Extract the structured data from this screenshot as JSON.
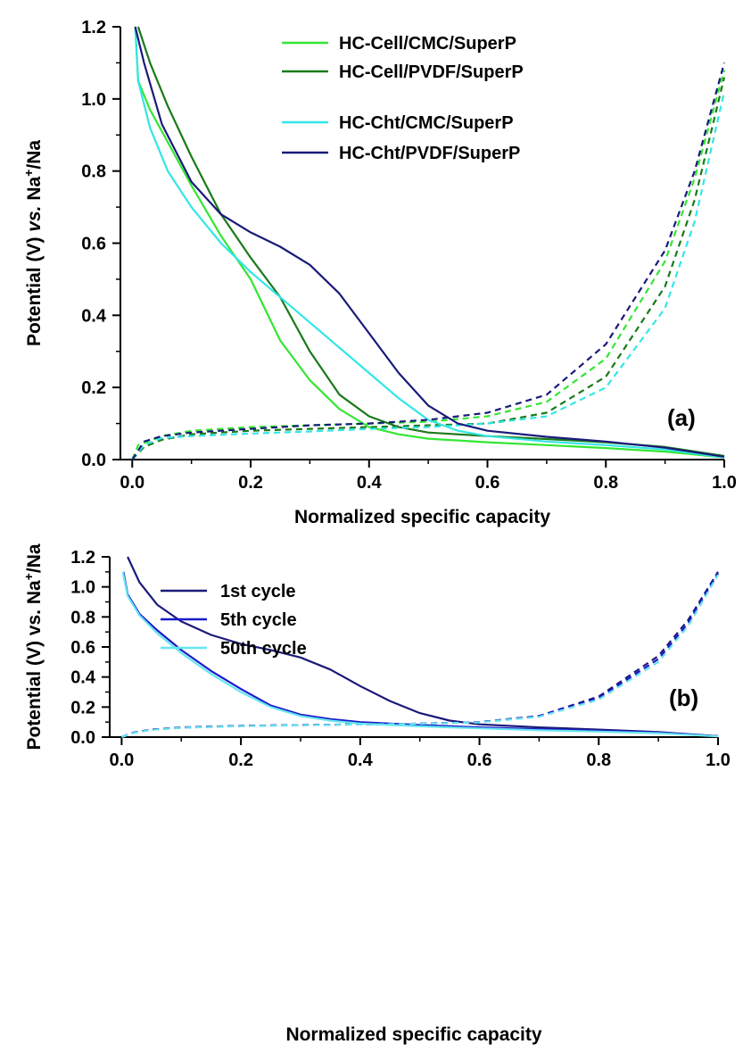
{
  "chart_data": [
    {
      "type": "line",
      "panel_label": "(a)",
      "xlabel": "Normalized specific capacity",
      "ylabel_parts": [
        "Potential (V) ",
        "vs.",
        " Na",
        "+",
        "/Na"
      ],
      "xlim": [
        -0.02,
        1.0
      ],
      "ylim": [
        0,
        1.2
      ],
      "x_ticks": [
        "0.0",
        "0.2",
        "0.4",
        "0.6",
        "0.8",
        "1.0"
      ],
      "y_ticks": [
        "0.0",
        "0.2",
        "0.4",
        "0.6",
        "0.8",
        "1.0",
        "1.2"
      ],
      "legend_position": "top-right",
      "series": [
        {
          "name": "HC-Cell/CMC/SuperP",
          "color": "#33e633",
          "discharge": [
            [
              0.005,
              1.2
            ],
            [
              0.01,
              1.05
            ],
            [
              0.03,
              0.97
            ],
            [
              0.06,
              0.88
            ],
            [
              0.1,
              0.76
            ],
            [
              0.15,
              0.62
            ],
            [
              0.2,
              0.5
            ],
            [
              0.25,
              0.33
            ],
            [
              0.3,
              0.22
            ],
            [
              0.35,
              0.14
            ],
            [
              0.4,
              0.09
            ],
            [
              0.45,
              0.07
            ],
            [
              0.5,
              0.058
            ],
            [
              0.6,
              0.048
            ],
            [
              0.7,
              0.04
            ],
            [
              0.8,
              0.032
            ],
            [
              0.9,
              0.022
            ],
            [
              1.0,
              0.006
            ]
          ],
          "charge": [
            [
              0.0,
              0.0
            ],
            [
              0.01,
              0.04
            ],
            [
              0.05,
              0.065
            ],
            [
              0.1,
              0.08
            ],
            [
              0.2,
              0.09
            ],
            [
              0.3,
              0.095
            ],
            [
              0.4,
              0.1
            ],
            [
              0.5,
              0.105
            ],
            [
              0.6,
              0.12
            ],
            [
              0.7,
              0.16
            ],
            [
              0.8,
              0.28
            ],
            [
              0.9,
              0.55
            ],
            [
              0.95,
              0.78
            ],
            [
              1.0,
              1.08
            ]
          ]
        },
        {
          "name": "HC-Cell/PVDF/SuperP",
          "color": "#1a7a1a",
          "discharge": [
            [
              0.01,
              1.2
            ],
            [
              0.03,
              1.1
            ],
            [
              0.06,
              0.98
            ],
            [
              0.1,
              0.84
            ],
            [
              0.15,
              0.68
            ],
            [
              0.2,
              0.56
            ],
            [
              0.25,
              0.45
            ],
            [
              0.3,
              0.3
            ],
            [
              0.35,
              0.18
            ],
            [
              0.4,
              0.12
            ],
            [
              0.45,
              0.09
            ],
            [
              0.5,
              0.075
            ],
            [
              0.6,
              0.065
            ],
            [
              0.7,
              0.057
            ],
            [
              0.8,
              0.048
            ],
            [
              0.9,
              0.035
            ],
            [
              1.0,
              0.01
            ]
          ],
          "charge": [
            [
              0.0,
              0.0
            ],
            [
              0.02,
              0.035
            ],
            [
              0.05,
              0.055
            ],
            [
              0.1,
              0.07
            ],
            [
              0.2,
              0.08
            ],
            [
              0.3,
              0.085
            ],
            [
              0.4,
              0.09
            ],
            [
              0.5,
              0.095
            ],
            [
              0.6,
              0.1
            ],
            [
              0.7,
              0.13
            ],
            [
              0.8,
              0.23
            ],
            [
              0.9,
              0.48
            ],
            [
              0.95,
              0.72
            ],
            [
              1.0,
              1.06
            ]
          ]
        },
        {
          "name": "HC-Cht/CMC/SuperP",
          "color": "#33e6e6",
          "discharge": [
            [
              0.005,
              1.2
            ],
            [
              0.01,
              1.05
            ],
            [
              0.03,
              0.92
            ],
            [
              0.06,
              0.8
            ],
            [
              0.1,
              0.7
            ],
            [
              0.15,
              0.6
            ],
            [
              0.2,
              0.52
            ],
            [
              0.25,
              0.45
            ],
            [
              0.3,
              0.38
            ],
            [
              0.35,
              0.31
            ],
            [
              0.4,
              0.24
            ],
            [
              0.45,
              0.17
            ],
            [
              0.5,
              0.11
            ],
            [
              0.55,
              0.08
            ],
            [
              0.6,
              0.065
            ],
            [
              0.7,
              0.05
            ],
            [
              0.8,
              0.04
            ],
            [
              0.9,
              0.028
            ],
            [
              1.0,
              0.006
            ]
          ],
          "charge": [
            [
              0.0,
              0.0
            ],
            [
              0.02,
              0.04
            ],
            [
              0.05,
              0.06
            ],
            [
              0.1,
              0.065
            ],
            [
              0.2,
              0.072
            ],
            [
              0.3,
              0.078
            ],
            [
              0.4,
              0.085
            ],
            [
              0.5,
              0.09
            ],
            [
              0.6,
              0.1
            ],
            [
              0.7,
              0.12
            ],
            [
              0.8,
              0.2
            ],
            [
              0.9,
              0.42
            ],
            [
              0.95,
              0.66
            ],
            [
              1.0,
              1.02
            ]
          ]
        },
        {
          "name": "HC-Cht/PVDF/SuperP",
          "color": "#1a1a7a",
          "discharge": [
            [
              0.005,
              1.2
            ],
            [
              0.02,
              1.1
            ],
            [
              0.05,
              0.93
            ],
            [
              0.1,
              0.77
            ],
            [
              0.15,
              0.68
            ],
            [
              0.2,
              0.63
            ],
            [
              0.25,
              0.59
            ],
            [
              0.3,
              0.54
            ],
            [
              0.35,
              0.46
            ],
            [
              0.4,
              0.35
            ],
            [
              0.45,
              0.24
            ],
            [
              0.5,
              0.15
            ],
            [
              0.55,
              0.1
            ],
            [
              0.6,
              0.08
            ],
            [
              0.7,
              0.063
            ],
            [
              0.8,
              0.05
            ],
            [
              0.9,
              0.033
            ],
            [
              1.0,
              0.008
            ]
          ],
          "charge": [
            [
              0.0,
              0.0
            ],
            [
              0.02,
              0.05
            ],
            [
              0.05,
              0.065
            ],
            [
              0.1,
              0.075
            ],
            [
              0.2,
              0.085
            ],
            [
              0.3,
              0.095
            ],
            [
              0.4,
              0.1
            ],
            [
              0.5,
              0.11
            ],
            [
              0.6,
              0.13
            ],
            [
              0.7,
              0.18
            ],
            [
              0.8,
              0.32
            ],
            [
              0.9,
              0.58
            ],
            [
              0.95,
              0.8
            ],
            [
              1.0,
              1.1
            ]
          ]
        }
      ]
    },
    {
      "type": "line",
      "panel_label": "(b)",
      "xlabel": "Normalized specific capacity",
      "ylabel_parts": [
        "Potential (V) vs. Na",
        "+",
        "/Na"
      ],
      "xlim": [
        -0.02,
        1.0
      ],
      "ylim": [
        0,
        1.2
      ],
      "x_ticks": [
        "0.0",
        "0.2",
        "0.4",
        "0.6",
        "0.8",
        "1.0"
      ],
      "y_ticks": [
        "0.0",
        "0.2",
        "0.4",
        "0.6",
        "0.8",
        "1.0",
        "1.2"
      ],
      "legend_position": "top-left",
      "series": [
        {
          "name": "1st  cycle",
          "color": "#1a1a7a",
          "discharge": [
            [
              0.01,
              1.2
            ],
            [
              0.03,
              1.03
            ],
            [
              0.06,
              0.88
            ],
            [
              0.1,
              0.77
            ],
            [
              0.15,
              0.68
            ],
            [
              0.2,
              0.62
            ],
            [
              0.25,
              0.58
            ],
            [
              0.3,
              0.53
            ],
            [
              0.35,
              0.45
            ],
            [
              0.4,
              0.34
            ],
            [
              0.45,
              0.24
            ],
            [
              0.5,
              0.16
            ],
            [
              0.55,
              0.11
            ],
            [
              0.6,
              0.085
            ],
            [
              0.7,
              0.065
            ],
            [
              0.8,
              0.05
            ],
            [
              0.9,
              0.034
            ],
            [
              1.0,
              0.006
            ]
          ],
          "charge": [
            [
              0.0,
              0.0
            ],
            [
              0.02,
              0.03
            ],
            [
              0.05,
              0.05
            ],
            [
              0.1,
              0.065
            ],
            [
              0.2,
              0.075
            ],
            [
              0.3,
              0.08
            ],
            [
              0.4,
              0.085
            ],
            [
              0.5,
              0.09
            ],
            [
              0.6,
              0.1
            ],
            [
              0.7,
              0.14
            ],
            [
              0.8,
              0.27
            ],
            [
              0.9,
              0.54
            ],
            [
              0.95,
              0.78
            ],
            [
              1.0,
              1.1
            ]
          ]
        },
        {
          "name": "5th  cycle",
          "color": "#1a1acc",
          "discharge": [
            [
              0.003,
              1.1
            ],
            [
              0.01,
              0.95
            ],
            [
              0.03,
              0.82
            ],
            [
              0.06,
              0.71
            ],
            [
              0.1,
              0.58
            ],
            [
              0.15,
              0.44
            ],
            [
              0.2,
              0.32
            ],
            [
              0.25,
              0.21
            ],
            [
              0.3,
              0.15
            ],
            [
              0.35,
              0.12
            ],
            [
              0.4,
              0.1
            ],
            [
              0.5,
              0.08
            ],
            [
              0.6,
              0.065
            ],
            [
              0.7,
              0.052
            ],
            [
              0.8,
              0.042
            ],
            [
              0.9,
              0.03
            ],
            [
              1.0,
              0.006
            ]
          ],
          "charge": [
            [
              0.0,
              0.0
            ],
            [
              0.02,
              0.03
            ],
            [
              0.05,
              0.05
            ],
            [
              0.1,
              0.063
            ],
            [
              0.2,
              0.074
            ],
            [
              0.3,
              0.08
            ],
            [
              0.4,
              0.085
            ],
            [
              0.5,
              0.09
            ],
            [
              0.6,
              0.1
            ],
            [
              0.7,
              0.14
            ],
            [
              0.8,
              0.26
            ],
            [
              0.9,
              0.52
            ],
            [
              0.95,
              0.76
            ],
            [
              1.0,
              1.09
            ]
          ]
        },
        {
          "name": "50th cycle",
          "color": "#66e6f0",
          "discharge": [
            [
              0.002,
              1.1
            ],
            [
              0.01,
              0.94
            ],
            [
              0.03,
              0.81
            ],
            [
              0.06,
              0.69
            ],
            [
              0.1,
              0.56
            ],
            [
              0.15,
              0.42
            ],
            [
              0.2,
              0.3
            ],
            [
              0.25,
              0.2
            ],
            [
              0.3,
              0.14
            ],
            [
              0.35,
              0.11
            ],
            [
              0.4,
              0.09
            ],
            [
              0.5,
              0.072
            ],
            [
              0.6,
              0.058
            ],
            [
              0.7,
              0.046
            ],
            [
              0.8,
              0.037
            ],
            [
              0.9,
              0.026
            ],
            [
              1.0,
              0.005
            ]
          ],
          "charge": [
            [
              0.0,
              0.0
            ],
            [
              0.02,
              0.028
            ],
            [
              0.05,
              0.048
            ],
            [
              0.1,
              0.062
            ],
            [
              0.2,
              0.073
            ],
            [
              0.3,
              0.079
            ],
            [
              0.4,
              0.084
            ],
            [
              0.5,
              0.089
            ],
            [
              0.6,
              0.098
            ],
            [
              0.7,
              0.135
            ],
            [
              0.8,
              0.25
            ],
            [
              0.9,
              0.5
            ],
            [
              0.95,
              0.74
            ],
            [
              1.0,
              1.08
            ]
          ]
        }
      ]
    }
  ]
}
